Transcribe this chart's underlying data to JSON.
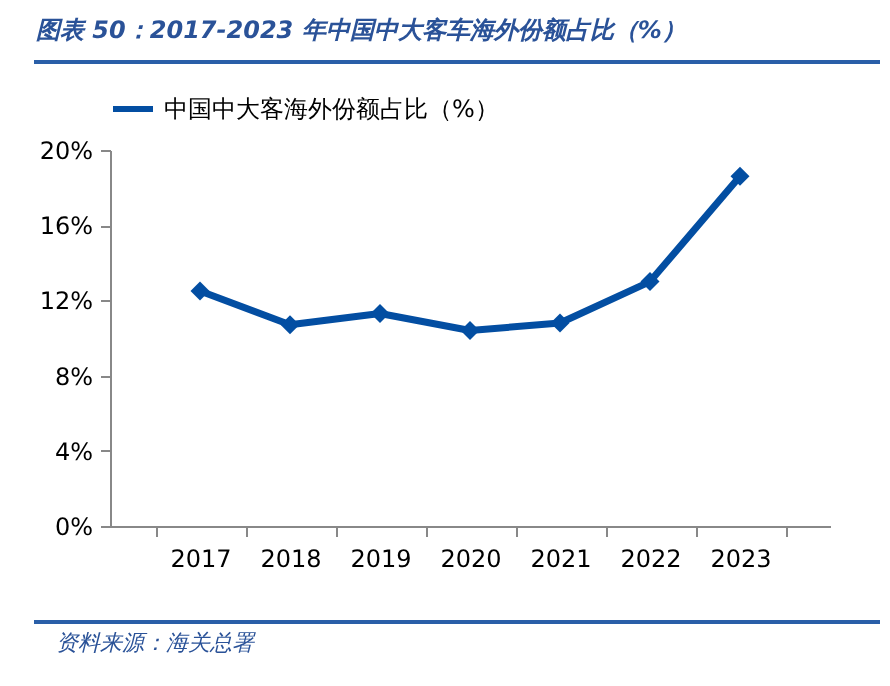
{
  "chart_data": {
    "type": "line",
    "title": "图表 50：2017-2023 年中国中大客车海外份额占比（%）",
    "categories": [
      "2017",
      "2018",
      "2019",
      "2020",
      "2021",
      "2022",
      "2023"
    ],
    "series": [
      {
        "name": "中国中大客海外份额占比（%）",
        "color": "#034ea2",
        "values": [
          12.5,
          10.7,
          11.3,
          10.4,
          10.8,
          13.0,
          18.6
        ]
      }
    ],
    "ylim": [
      0,
      20
    ],
    "yticks": [
      {
        "value": 0,
        "label": "0%"
      },
      {
        "value": 4,
        "label": "4%"
      },
      {
        "value": 8,
        "label": "8%"
      },
      {
        "value": 12,
        "label": "12%"
      },
      {
        "value": 16,
        "label": "16%"
      },
      {
        "value": 20,
        "label": "20%"
      }
    ],
    "grid": false,
    "legend": "top",
    "marker": "diamond",
    "line_style": "solid",
    "annotations": [
      "资料来源：海关总署"
    ]
  }
}
